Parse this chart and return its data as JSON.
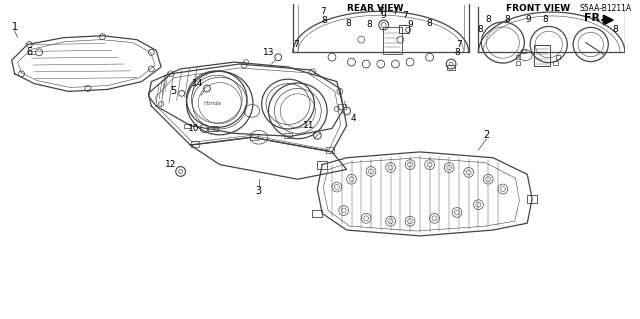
{
  "bg_color": "#ffffff",
  "line_color": "#444444",
  "fr_label": "FR.",
  "rear_view_label": "REAR VIEW",
  "front_view_label": "FRONT VIEW",
  "part_number": "S5AA-B1211A"
}
